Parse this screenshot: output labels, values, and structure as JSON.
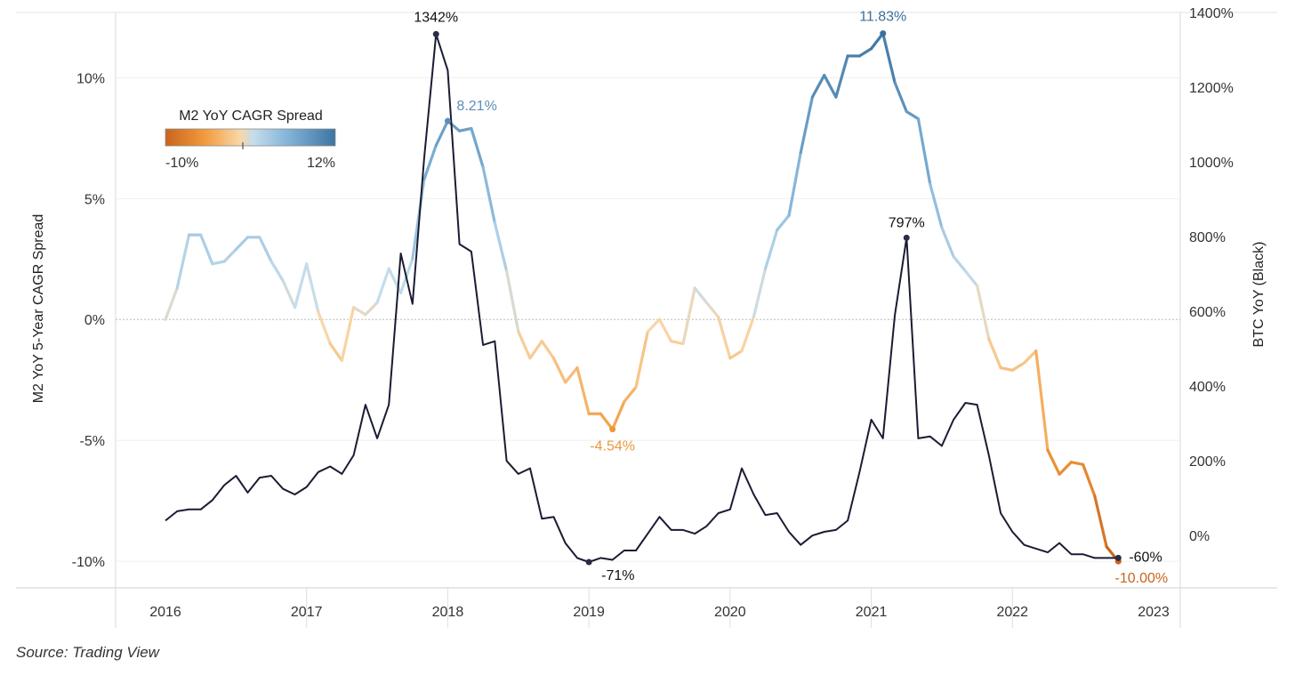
{
  "source_text": "Source: Trading View",
  "chart_data": {
    "type": "line",
    "x_axis": {
      "ticks": [
        "2016",
        "2017",
        "2018",
        "2019",
        "2020",
        "2021",
        "2022",
        "2023"
      ],
      "range": [
        2016.0,
        2023.0
      ]
    },
    "left_axis": {
      "label": "M2 YoY 5-Year CAGR Spread",
      "ticks": [
        "10%",
        "5%",
        "0%",
        "-5%",
        "-10%"
      ],
      "tick_values": [
        10,
        5,
        0,
        -5,
        -10
      ],
      "range": [
        -11.1,
        12.7
      ]
    },
    "right_axis": {
      "label": "BTC YoY (Black)",
      "ticks": [
        "1400%",
        "1200%",
        "1000%",
        "800%",
        "600%",
        "400%",
        "200%",
        "0%"
      ],
      "tick_values": [
        1400,
        1200,
        1000,
        800,
        600,
        400,
        200,
        0
      ],
      "range": [
        -140,
        1400
      ]
    },
    "zero_reference_line": "dotted",
    "legend": {
      "title": "M2 YoY CAGR Spread",
      "min_label": "-10%",
      "max_label": "12%",
      "min_value": -10,
      "max_value": 12,
      "gradient_colors": [
        "#c8641e",
        "#f29a3c",
        "#f8d7a8",
        "#c4dcec",
        "#7fb2d6",
        "#3d74a3"
      ],
      "placement": "top-left"
    },
    "series": [
      {
        "axis": "left",
        "color_mode": "diverging-gradient",
        "x": [
          2016.0,
          2016.083,
          2016.167,
          2016.25,
          2016.333,
          2016.417,
          2016.5,
          2016.583,
          2016.667,
          2016.75,
          2016.833,
          2016.917,
          2017.0,
          2017.083,
          2017.167,
          2017.25,
          2017.333,
          2017.417,
          2017.5,
          2017.583,
          2017.667,
          2017.75,
          2017.833,
          2017.917,
          2018.0,
          2018.083,
          2018.167,
          2018.25,
          2018.333,
          2018.417,
          2018.5,
          2018.583,
          2018.667,
          2018.75,
          2018.833,
          2018.917,
          2019.0,
          2019.083,
          2019.167,
          2019.25,
          2019.333,
          2019.417,
          2019.5,
          2019.583,
          2019.667,
          2019.75,
          2019.833,
          2019.917,
          2020.0,
          2020.083,
          2020.167,
          2020.25,
          2020.333,
          2020.417,
          2020.5,
          2020.583,
          2020.667,
          2020.75,
          2020.833,
          2020.917,
          2021.0,
          2021.083,
          2021.167,
          2021.25,
          2021.333,
          2021.417,
          2021.5,
          2021.583,
          2021.667,
          2021.75,
          2021.833,
          2021.917,
          2022.0,
          2022.083,
          2022.167,
          2022.25,
          2022.333,
          2022.417,
          2022.5,
          2022.583,
          2022.667,
          2022.75
        ],
        "values": [
          0.0,
          1.3,
          3.5,
          3.5,
          2.3,
          2.4,
          2.9,
          3.4,
          3.4,
          2.4,
          1.6,
          0.5,
          2.3,
          0.3,
          -1.0,
          -1.7,
          0.5,
          0.2,
          0.7,
          2.1,
          1.1,
          2.5,
          5.8,
          7.2,
          8.21,
          7.8,
          7.9,
          6.3,
          4.0,
          2.0,
          -0.5,
          -1.6,
          -0.9,
          -1.6,
          -2.6,
          -2.0,
          -3.9,
          -3.9,
          -4.54,
          -3.4,
          -2.8,
          -0.5,
          0.0,
          -0.9,
          -1.0,
          1.3,
          0.7,
          0.1,
          -1.6,
          -1.3,
          0.1,
          2.1,
          3.7,
          4.3,
          6.9,
          9.2,
          10.1,
          9.2,
          10.9,
          10.9,
          11.2,
          11.83,
          9.8,
          8.6,
          8.3,
          5.6,
          3.8,
          2.6,
          2.0,
          1.4,
          -0.8,
          -2.0,
          -2.1,
          -1.8,
          -1.3,
          -5.4,
          -6.4,
          -5.9,
          -6.0,
          -7.3,
          -9.4,
          -10.0
        ],
        "annotations": [
          {
            "x": 2018.0,
            "value": 8.21,
            "label": "8.21%",
            "color": "#5b8fba"
          },
          {
            "x": 2019.167,
            "value": -4.54,
            "label": "-4.54%",
            "color": "#e89a3c"
          },
          {
            "x": 2021.083,
            "value": 11.83,
            "label": "11.83%",
            "color": "#3d6f9c"
          },
          {
            "x": 2022.75,
            "value": -10.0,
            "label": "-10.00%",
            "color": "#c8641e"
          }
        ]
      },
      {
        "axis": "right",
        "color": "#1a1c33",
        "x": [
          2016.0,
          2016.083,
          2016.167,
          2016.25,
          2016.333,
          2016.417,
          2016.5,
          2016.583,
          2016.667,
          2016.75,
          2016.833,
          2016.917,
          2017.0,
          2017.083,
          2017.167,
          2017.25,
          2017.333,
          2017.417,
          2017.5,
          2017.583,
          2017.667,
          2017.75,
          2017.833,
          2017.917,
          2018.0,
          2018.083,
          2018.167,
          2018.25,
          2018.333,
          2018.417,
          2018.5,
          2018.583,
          2018.667,
          2018.75,
          2018.833,
          2018.917,
          2019.0,
          2019.083,
          2019.167,
          2019.25,
          2019.333,
          2019.417,
          2019.5,
          2019.583,
          2019.667,
          2019.75,
          2019.833,
          2019.917,
          2020.0,
          2020.083,
          2020.167,
          2020.25,
          2020.333,
          2020.417,
          2020.5,
          2020.583,
          2020.667,
          2020.75,
          2020.833,
          2020.917,
          2021.0,
          2021.083,
          2021.167,
          2021.25,
          2021.333,
          2021.417,
          2021.5,
          2021.583,
          2021.667,
          2021.75,
          2021.833,
          2021.917,
          2022.0,
          2022.083,
          2022.167,
          2022.25,
          2022.333,
          2022.417,
          2022.5,
          2022.583,
          2022.667,
          2022.75
        ],
        "values": [
          40,
          65,
          70,
          70,
          95,
          135,
          160,
          115,
          155,
          160,
          125,
          110,
          130,
          170,
          185,
          165,
          215,
          350,
          260,
          350,
          755,
          620,
          1010,
          1342,
          1245,
          780,
          760,
          510,
          520,
          200,
          165,
          180,
          45,
          50,
          -20,
          -60,
          -71,
          -60,
          -65,
          -40,
          -40,
          5,
          50,
          15,
          15,
          5,
          25,
          60,
          70,
          180,
          110,
          55,
          60,
          10,
          -25,
          0,
          10,
          15,
          40,
          170,
          310,
          260,
          590,
          797,
          260,
          265,
          240,
          310,
          355,
          350,
          215,
          60,
          10,
          -25,
          -35,
          -45,
          -20,
          -50,
          -50,
          -60,
          -60,
          -60
        ],
        "annotations": [
          {
            "x": 2017.917,
            "value": 1342,
            "label": "1342%"
          },
          {
            "x": 2019.0,
            "value": -71,
            "label": "-71%"
          },
          {
            "x": 2021.25,
            "value": 797,
            "label": "797%"
          },
          {
            "x": 2022.75,
            "value": -60,
            "label": "-60%"
          }
        ]
      }
    ]
  }
}
